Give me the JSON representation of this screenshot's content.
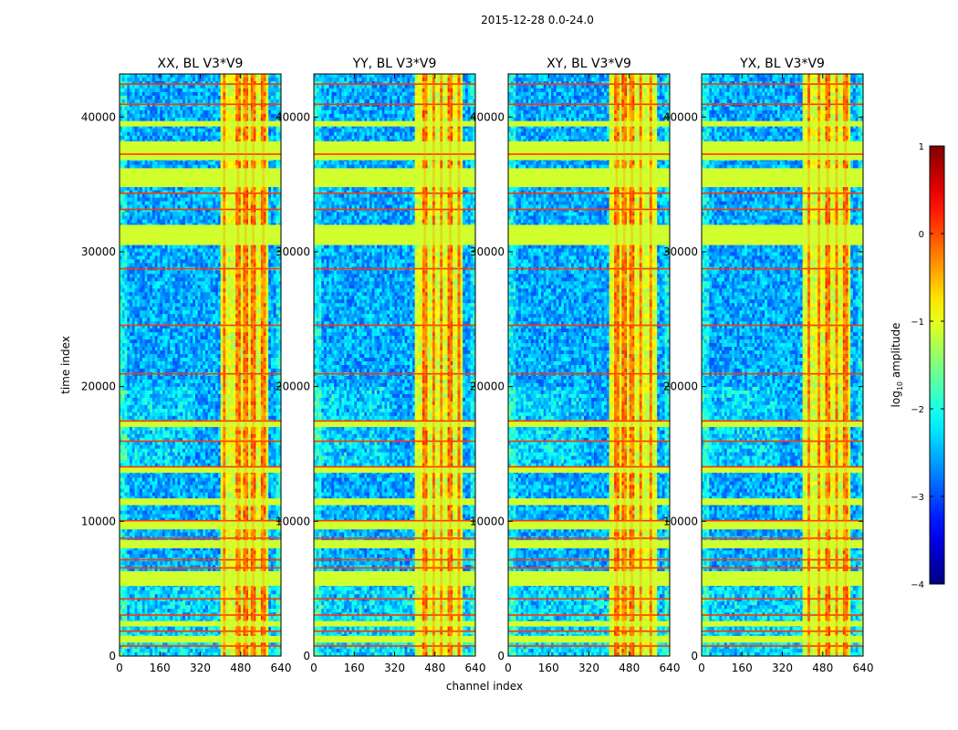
{
  "suptitle": "2015-12-28 0.0-24.0",
  "colorbar": {
    "label_prefix": "log",
    "label_sub": "10",
    "label_suffix": " amplitude",
    "range": [
      -4,
      1
    ],
    "ticks": [
      1,
      0,
      -1,
      -2,
      -3,
      -4
    ],
    "tick_labels": [
      "1",
      "0",
      "−1",
      "−2",
      "−3",
      "−4"
    ],
    "colormap": "jet"
  },
  "chart_data": [
    {
      "type": "heatmap",
      "title": "XX, BL V3*V9",
      "xlabel": "",
      "ylabel": "time index",
      "xlim": [
        0,
        640
      ],
      "ylim": [
        0,
        43200
      ],
      "xticks": [
        0,
        160,
        320,
        480,
        640
      ],
      "xtick_labels": [
        "0",
        "160",
        "320",
        "480",
        "640"
      ],
      "yticks": [
        0,
        10000,
        20000,
        30000,
        40000
      ],
      "ytick_labels": [
        "0",
        "10000",
        "20000",
        "30000",
        "40000"
      ],
      "rfi_band_channels": [
        400,
        590
      ],
      "hot_channel_columns": [
        415,
        470,
        500,
        530,
        570
      ]
    },
    {
      "type": "heatmap",
      "title": "YY, BL V3*V9",
      "xlabel": "channel index",
      "ylabel": "",
      "xlim": [
        0,
        640
      ],
      "ylim": [
        0,
        43200
      ],
      "xticks": [
        0,
        160,
        320,
        480,
        640
      ],
      "xtick_labels": [
        "0",
        "160",
        "320",
        "480",
        "640"
      ],
      "yticks": [
        0,
        10000,
        20000,
        30000,
        40000
      ],
      "ytick_labels": [
        "0",
        "10000",
        "20000",
        "30000",
        "40000"
      ],
      "rfi_band_channels": [
        400,
        590
      ],
      "hot_channel_columns": [
        440,
        475,
        505,
        540,
        575
      ]
    },
    {
      "type": "heatmap",
      "title": "XY, BL V3*V9",
      "xlabel": "",
      "ylabel": "",
      "xlim": [
        0,
        640
      ],
      "ylim": [
        0,
        43200
      ],
      "xticks": [
        0,
        160,
        320,
        480,
        640
      ],
      "xtick_labels": [
        "0",
        "160",
        "320",
        "480",
        "640"
      ],
      "yticks": [
        0,
        10000,
        20000,
        30000,
        40000
      ],
      "ytick_labels": [
        "0",
        "10000",
        "20000",
        "30000",
        "40000"
      ],
      "rfi_band_channels": [
        400,
        590
      ],
      "hot_channel_columns": [
        430,
        460,
        490,
        525,
        565
      ]
    },
    {
      "type": "heatmap",
      "title": "YX, BL V3*V9",
      "xlabel": "",
      "ylabel": "",
      "xlim": [
        0,
        640
      ],
      "ylim": [
        0,
        43200
      ],
      "xticks": [
        0,
        160,
        320,
        480,
        640
      ],
      "xtick_labels": [
        "0",
        "160",
        "320",
        "480",
        "640"
      ],
      "yticks": [
        0,
        10000,
        20000,
        30000,
        40000
      ],
      "ytick_labels": [
        "0",
        "10000",
        "20000",
        "30000",
        "40000"
      ],
      "rfi_band_channels": [
        400,
        590
      ],
      "hot_channel_columns": [
        425,
        465,
        500,
        535,
        570
      ]
    }
  ],
  "flagged_time_bands": [
    [
      1000,
      1500
    ],
    [
      2200,
      2600
    ],
    [
      5200,
      6300
    ],
    [
      8000,
      8600
    ],
    [
      9400,
      10000
    ],
    [
      11200,
      11700
    ],
    [
      13600,
      14000
    ],
    [
      17000,
      17400
    ],
    [
      30500,
      32000
    ],
    [
      34800,
      36200
    ],
    [
      36800,
      38200
    ],
    [
      39300,
      39700
    ]
  ],
  "flag_line_times": [
    800,
    1900,
    3100,
    4300,
    6600,
    7200,
    8800,
    10100,
    14100,
    16000,
    17500,
    21000,
    24600,
    28800,
    33200,
    34400,
    37300,
    41000,
    42500
  ]
}
